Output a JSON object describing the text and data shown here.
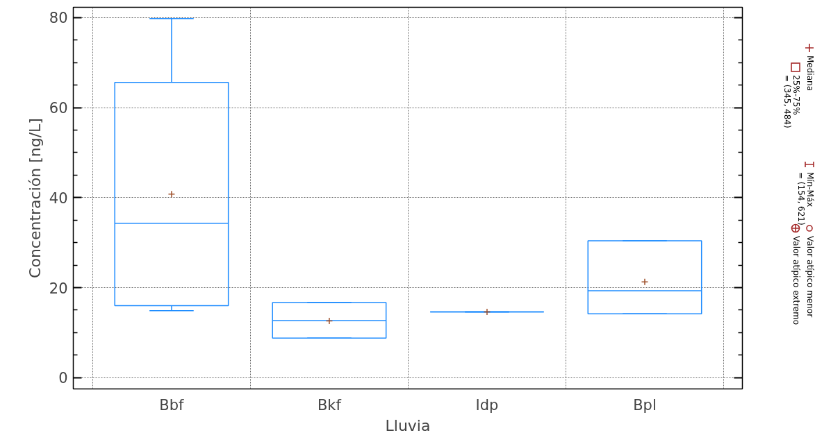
{
  "chart_data": {
    "type": "box",
    "xlabel": "Lluvia",
    "ylabel": "Concentración [ng/L]",
    "categories": [
      "Bbf",
      "Bkf",
      "Idp",
      "Bpl"
    ],
    "boxes": [
      {
        "low": 14.9,
        "q1": 16.0,
        "median": 34.3,
        "q3": 65.6,
        "high": 79.8,
        "mean": 40.8
      },
      {
        "low": 8.8,
        "q1": 8.8,
        "median": 12.7,
        "q3": 16.7,
        "high": 16.7,
        "mean": 12.6
      },
      {
        "low": 14.6,
        "q1": 14.6,
        "median": 14.6,
        "q3": 14.6,
        "high": 14.6,
        "mean": 14.6
      },
      {
        "low": 14.2,
        "q1": 14.2,
        "median": 19.3,
        "q3": 30.4,
        "high": 30.4,
        "mean": 21.3
      }
    ],
    "color": "#1e8cff",
    "ylim": [
      -2.5,
      82.3
    ],
    "yticks": [
      0,
      {
        "value": 5,
        "label": null
      },
      {
        "value": 10,
        "label": null
      },
      {
        "value": 15,
        "label": null
      },
      20,
      {
        "value": 25,
        "label": null
      },
      {
        "value": 30,
        "label": null
      },
      {
        "value": 35,
        "label": null
      },
      40,
      {
        "value": 45,
        "label": null
      },
      {
        "value": 50,
        "label": null
      },
      {
        "value": 55,
        "label": null
      },
      60,
      {
        "value": 65,
        "label": null
      },
      {
        "value": 70,
        "label": null
      },
      {
        "value": 75,
        "label": null
      },
      80
    ],
    "grid": true,
    "annotations": [
      "Mediana",
      "25%-75%\n= (345, 484)",
      "Mín-Máx\n= (154, 621)",
      "Valor atípico menor",
      "Valor atípico extremo"
    ]
  }
}
